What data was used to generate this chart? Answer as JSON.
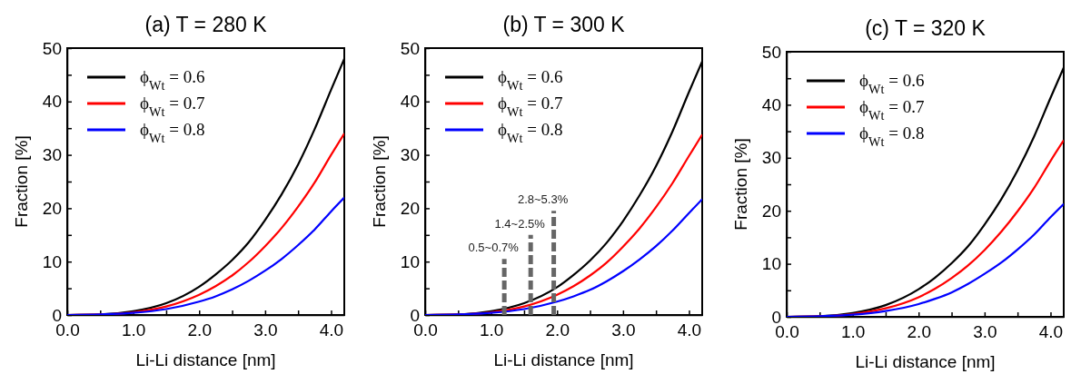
{
  "chart_data": [
    {
      "type": "line",
      "title": "(a) T = 280 K",
      "xlabel": "Li-Li distance [nm]",
      "ylabel": "Fraction [%]",
      "x": [
        0,
        0.5,
        1,
        1.5,
        2,
        2.25,
        2.5,
        2.75,
        3,
        3.25,
        3.5,
        3.75,
        4,
        4.2
      ],
      "xlim": [
        0,
        4.2
      ],
      "xticks": [
        {
          "value": 0,
          "label": "0.0"
        },
        {
          "value": 0.5,
          "label": null
        },
        {
          "value": 1,
          "label": "1.0"
        },
        {
          "value": 1.5,
          "label": null
        },
        {
          "value": 2,
          "label": "2.0"
        },
        {
          "value": 2.5,
          "label": null
        },
        {
          "value": 3,
          "label": "3.0"
        },
        {
          "value": 3.5,
          "label": null
        },
        {
          "value": 4,
          "label": "4.0"
        }
      ],
      "ylim": [
        0,
        50
      ],
      "yticks": [
        0,
        {
          "value": 5,
          "label": null
        },
        10,
        {
          "value": 15,
          "label": null
        },
        20,
        {
          "value": 25,
          "label": null
        },
        30,
        {
          "value": 35,
          "label": null
        },
        40,
        {
          "value": 45,
          "label": null
        },
        50
      ],
      "legend": "top left",
      "marker": "none",
      "line_style": "solid",
      "series": [
        {
          "name": "ϕ$_{Wt}$ = 0.6",
          "color": "#000000",
          "values": [
            0,
            0.1,
            0.7,
            2.2,
            5.3,
            7.6,
            10.3,
            13.6,
            17.8,
            22.6,
            28.2,
            34.8,
            42.2,
            48
          ]
        },
        {
          "name": "ϕ$_{Wt}$ = 0.7",
          "color": "#ff0000",
          "values": [
            0,
            0.1,
            0.5,
            1.6,
            3.8,
            5.4,
            7.4,
            9.9,
            12.9,
            16.3,
            20.3,
            24.8,
            30,
            34
          ]
        },
        {
          "name": "ϕ$_{Wt}$ = 0.8",
          "color": "#0000ff",
          "values": [
            0,
            0.1,
            0.4,
            1.1,
            2.5,
            3.5,
            4.8,
            6.4,
            8.3,
            10.5,
            13.1,
            16,
            19.4,
            22
          ]
        }
      ]
    },
    {
      "type": "line",
      "title": "(b) T = 300 K",
      "xlabel": "Li-Li distance [nm]",
      "ylabel": "Fraction [%]",
      "x": [
        0,
        0.5,
        1,
        1.5,
        2,
        2.25,
        2.5,
        2.75,
        3,
        3.25,
        3.5,
        3.75,
        4,
        4.2
      ],
      "xlim": [
        0,
        4.2
      ],
      "xticks": [
        {
          "value": 0,
          "label": "0.0"
        },
        {
          "value": 0.5,
          "label": null
        },
        {
          "value": 1,
          "label": "1.0"
        },
        {
          "value": 1.5,
          "label": null
        },
        {
          "value": 2,
          "label": "2.0"
        },
        {
          "value": 2.5,
          "label": null
        },
        {
          "value": 3,
          "label": "3.0"
        },
        {
          "value": 3.5,
          "label": null
        },
        {
          "value": 4,
          "label": "4.0"
        }
      ],
      "ylim": [
        0,
        50
      ],
      "yticks": [
        0,
        {
          "value": 5,
          "label": null
        },
        10,
        {
          "value": 15,
          "label": null
        },
        20,
        {
          "value": 25,
          "label": null
        },
        30,
        {
          "value": 35,
          "label": null
        },
        40,
        {
          "value": 45,
          "label": null
        },
        50
      ],
      "legend": "top left",
      "marker": "none",
      "line_style": "solid",
      "ref_lines": [
        {
          "axis": "x",
          "value": 1.2,
          "color": "#666666",
          "line_style": "dashed"
        },
        {
          "axis": "x",
          "value": 1.6,
          "color": "#666666",
          "line_style": "dashed"
        },
        {
          "axis": "x",
          "value": 1.95,
          "color": "#666666",
          "line_style": "dashed"
        }
      ],
      "annotations": [
        "0.5~0.7%",
        "1.4~2.5%",
        "2.8~5.3%"
      ],
      "series": [
        {
          "name": "ϕ$_{Wt}$ = 0.6",
          "color": "#000000",
          "values": [
            0,
            0.1,
            0.7,
            2.2,
            5.2,
            7.5,
            10.2,
            13.5,
            17.6,
            22.4,
            27.9,
            34.4,
            41.8,
            47.5
          ]
        },
        {
          "name": "ϕ$_{Wt}$ = 0.7",
          "color": "#ff0000",
          "values": [
            0,
            0.1,
            0.5,
            1.6,
            3.8,
            5.4,
            7.4,
            9.8,
            12.8,
            16.2,
            20.2,
            24.7,
            29.8,
            33.8
          ]
        },
        {
          "name": "ϕ$_{Wt}$ = 0.8",
          "color": "#0000ff",
          "values": [
            0,
            0.1,
            0.4,
            1.1,
            2.5,
            3.5,
            4.7,
            6.3,
            8.2,
            10.4,
            12.9,
            15.8,
            19.1,
            21.7
          ]
        }
      ]
    },
    {
      "type": "line",
      "title": "(c) T = 320 K",
      "xlabel": "Li-Li distance [nm]",
      "ylabel": "Fraction [%]",
      "x": [
        0,
        0.5,
        1,
        1.5,
        2,
        2.25,
        2.5,
        2.75,
        3,
        3.25,
        3.5,
        3.75,
        4,
        4.2
      ],
      "xlim": [
        0,
        4.2
      ],
      "xticks": [
        {
          "value": 0,
          "label": "0.0"
        },
        {
          "value": 0.5,
          "label": null
        },
        {
          "value": 1,
          "label": "1.0"
        },
        {
          "value": 1.5,
          "label": null
        },
        {
          "value": 2,
          "label": "2.0"
        },
        {
          "value": 2.5,
          "label": null
        },
        {
          "value": 3,
          "label": "3.0"
        },
        {
          "value": 3.5,
          "label": null
        },
        {
          "value": 4,
          "label": "4.0"
        }
      ],
      "ylim": [
        0,
        50
      ],
      "yticks": [
        0,
        {
          "value": 5,
          "label": null
        },
        10,
        {
          "value": 15,
          "label": null
        },
        20,
        {
          "value": 25,
          "label": null
        },
        30,
        {
          "value": 35,
          "label": null
        },
        40,
        {
          "value": 45,
          "label": null
        },
        50
      ],
      "legend": "top left",
      "marker": "none",
      "line_style": "solid",
      "series": [
        {
          "name": "ϕ$_{Wt}$ = 0.6",
          "color": "#000000",
          "values": [
            0,
            0.1,
            0.7,
            2.2,
            5.2,
            7.4,
            10.1,
            13.3,
            17.4,
            22.1,
            27.6,
            34,
            41.3,
            47
          ]
        },
        {
          "name": "ϕ$_{Wt}$ = 0.7",
          "color": "#ff0000",
          "values": [
            0,
            0.1,
            0.5,
            1.6,
            3.7,
            5.3,
            7.3,
            9.7,
            12.6,
            16,
            19.9,
            24.3,
            29.4,
            33.3
          ]
        },
        {
          "name": "ϕ$_{Wt}$ = 0.8",
          "color": "#0000ff",
          "values": [
            0,
            0.1,
            0.4,
            1.1,
            2.4,
            3.4,
            4.6,
            6.2,
            8.1,
            10.2,
            12.7,
            15.5,
            18.8,
            21.3
          ]
        }
      ]
    }
  ]
}
